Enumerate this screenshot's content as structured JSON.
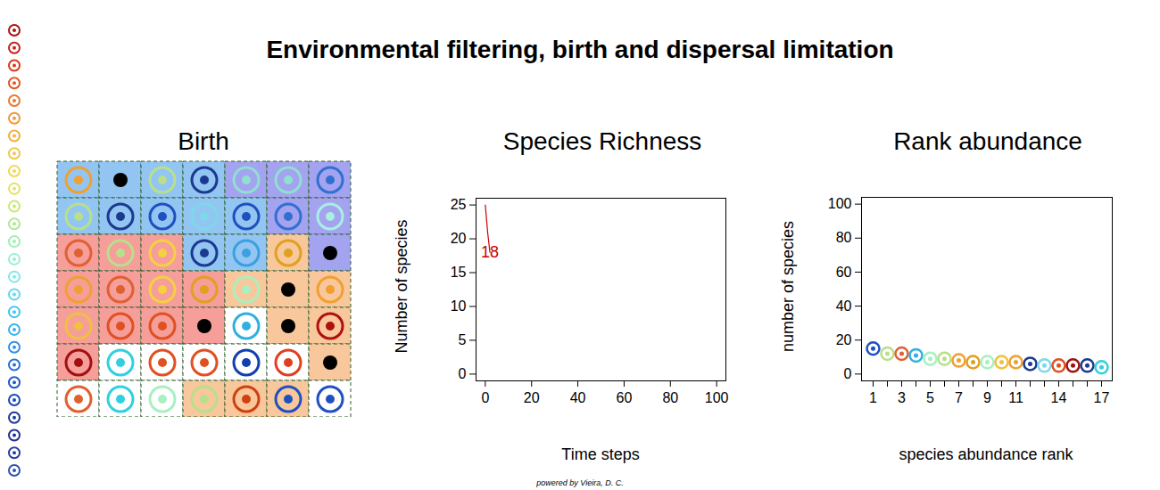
{
  "title": "Environmental filtering, birth and dispersal limitation",
  "caption": "powered by Vieira, D. C.",
  "chart_data": [
    {
      "type": "grid",
      "title": "Birth",
      "species_colors": [
        "#b01010",
        "#c82020",
        "#d83a1a",
        "#e05828",
        "#e87830",
        "#f09838",
        "#f0b040",
        "#f0c850",
        "#f0d858",
        "#e8e060",
        "#c8e870",
        "#b0e890",
        "#a0f0b0",
        "#98f0d0",
        "#80e8e8",
        "#60d8f0",
        "#40c8f0",
        "#38b0f0",
        "#3090e8",
        "#2870d8",
        "#2058c8",
        "#1848b8",
        "#1a3a9c",
        "#203090",
        "#2a40a0",
        "#3050b0"
      ],
      "cell_colors": [
        [
          "#93c5f2",
          "#93c5f2",
          "#93c5f2",
          "#93c5f2",
          "#a3a3f0",
          "#a3a3f0",
          "#a3a3f0"
        ],
        [
          "#93c5f2",
          "#93c5f2",
          "#93c5f2",
          "#93c5f2",
          "#93c5f2",
          "#a3a3f0",
          "#a3a3f0"
        ],
        [
          "#f59e9a",
          "#f59e9a",
          "#f59e9a",
          "#93c5f2",
          "#93c5f2",
          "#f8c79b",
          "#a3a3f0"
        ],
        [
          "#f59e9a",
          "#f59e9a",
          "#f59e9a",
          "#f59e9a",
          "#f8c79b",
          "#f8c79b",
          "#f8c79b"
        ],
        [
          "#f59e9a",
          "#f59e9a",
          "#f59e9a",
          "#f59e9a",
          "#ffffff",
          "#f8c79b",
          "#f8c79b"
        ],
        [
          "#f59e9a",
          "#ffffff",
          "#ffffff",
          "#ffffff",
          "#ffffff",
          "#ffffff",
          "#f8c79b"
        ],
        [
          "#ffffff",
          "#ffffff",
          "#ffffff",
          "#f8c79b",
          "#f8c79b",
          "#f8c79b",
          "#ffffff"
        ]
      ],
      "occupants": [
        [
          "#f0a030",
          null,
          "#b8e08a",
          "#1b3a8f",
          "#8fe0d0",
          "#8fe0d0",
          "#3070d0"
        ],
        [
          "#b8e08a",
          "#1b3a8f",
          "#2050c0",
          "#7dd8e8",
          "#2050c0",
          "#3070d0",
          "#a8f0e0"
        ],
        [
          "#e06030",
          "#b8e08a",
          "#f5d040",
          "#1b3a8f",
          "#3aa0e0",
          "#e0a020",
          null
        ],
        [
          "#f0a030",
          "#e06030",
          "#f5d040",
          "#e0a020",
          "#a8f0c0",
          null,
          "#f0a030"
        ],
        [
          "#f0c040",
          "#e05020",
          "#e05020",
          null,
          "#30b0e0",
          null,
          "#b01010"
        ],
        [
          "#a01010",
          "#30d0e0",
          "#e05020",
          "#e05020",
          "#1040b0",
          "#e04020",
          null
        ],
        [
          "#e06030",
          "#30d0e0",
          "#a8f0c0",
          "#b8e08a",
          "#d04010",
          "#2050c0",
          "#2050c0"
        ]
      ]
    },
    {
      "type": "line",
      "title": "Species Richness",
      "x_label": "Time steps",
      "y_label": "Number of species",
      "x": [
        0,
        1,
        2
      ],
      "values": [
        25,
        21,
        18
      ],
      "color": "#cc0000",
      "xlim": [
        -4,
        104
      ],
      "xticks": [
        0,
        20,
        40,
        60,
        80,
        100
      ],
      "ylim": [
        -1,
        26
      ],
      "yticks": [
        0,
        5,
        10,
        15,
        20,
        25
      ],
      "annotations": [
        {
          "x": 2,
          "y": 18,
          "text": "18"
        }
      ]
    },
    {
      "type": "scatter",
      "title": "Rank abundance",
      "x_label": "species abundance rank",
      "y_label": "number of species",
      "categories": [
        "1",
        null,
        "3",
        null,
        "5",
        null,
        "7",
        null,
        "9",
        null,
        "11",
        null,
        null,
        "14",
        null,
        null,
        "17"
      ],
      "values": [
        15,
        12,
        12,
        11,
        9,
        9,
        8,
        7,
        7,
        7,
        7,
        6,
        5,
        5,
        5,
        5,
        4
      ],
      "colors": [
        "#2050c0",
        "#b8e08a",
        "#e06030",
        "#30b0e0",
        "#a8f0c0",
        "#b8e08a",
        "#f0a030",
        "#e0a020",
        "#a8f0c0",
        "#f0c040",
        "#f0a030",
        "#1b3a8f",
        "#7dd8e8",
        "#e05020",
        "#a01010",
        "#1b3a8f",
        "#30d0e0"
      ],
      "ylim": [
        -4,
        104
      ],
      "yticks": [
        0,
        20,
        40,
        60,
        80,
        100
      ]
    }
  ]
}
